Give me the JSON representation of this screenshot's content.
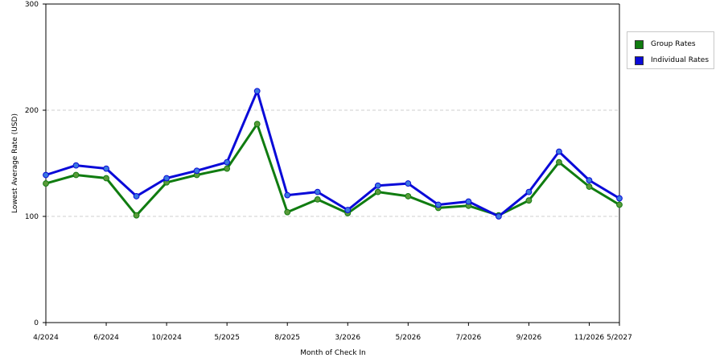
{
  "chart_data": {
    "type": "line",
    "xlabel": "Month of Check In",
    "ylabel": "Lowest Average Rate (USD)",
    "ylim": [
      0,
      300
    ],
    "yticks": [
      0,
      100,
      200,
      300
    ],
    "grid": "horizontal dashed",
    "legend_position": "right",
    "x_tick_labels": [
      "4/2024",
      "6/2024",
      "10/2024",
      "5/2025",
      "8/2025",
      "3/2026",
      "5/2026",
      "7/2026",
      "9/2026",
      "11/2026",
      "5/2027"
    ],
    "x_tick_point_index": [
      0,
      2,
      4,
      6,
      8,
      10,
      12,
      14,
      16,
      18,
      19
    ],
    "series": [
      {
        "name": "Group Rates",
        "color": "#107c10",
        "marker_color": "#5a9a3a",
        "values": [
          131,
          139,
          136,
          101,
          132,
          139,
          145,
          187,
          104,
          116,
          103,
          123,
          119,
          108,
          110,
          101,
          115,
          151,
          128,
          111
        ]
      },
      {
        "name": "Individual Rates",
        "color": "#0a0ad8",
        "marker_color": "#3a78e0",
        "values": [
          139,
          148,
          145,
          119,
          136,
          143,
          151,
          218,
          120,
          123,
          106,
          129,
          131,
          111,
          114,
          100,
          123,
          161,
          134,
          117
        ]
      }
    ]
  }
}
